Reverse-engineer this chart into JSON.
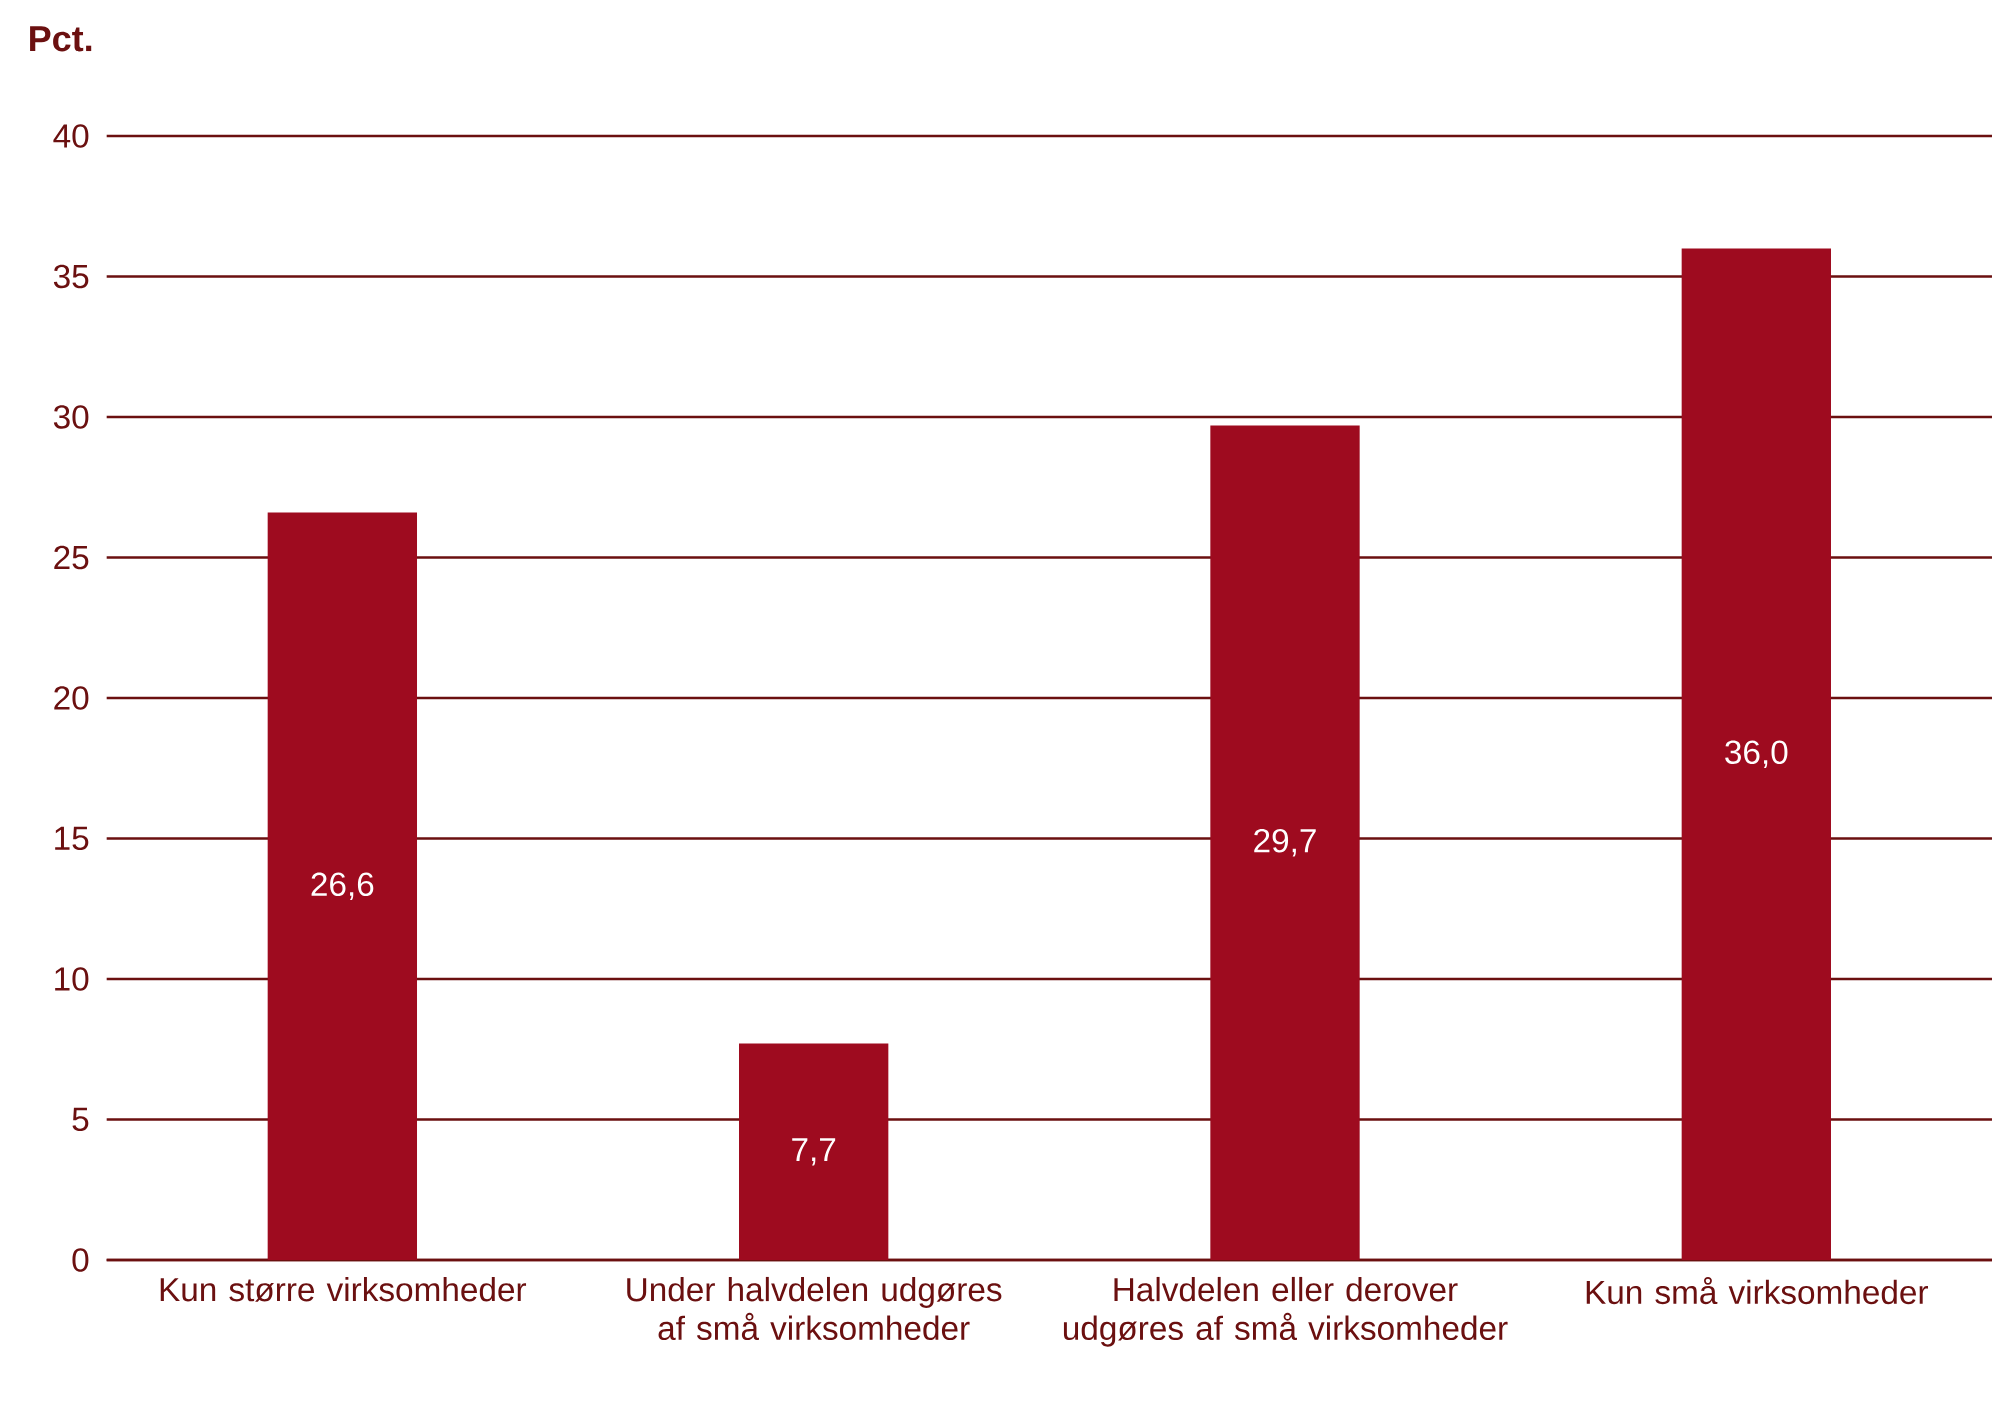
{
  "chart_data": {
    "type": "bar",
    "ylabel": "Pct.",
    "categories": [
      "Kun større virksomheder",
      "Under halvdelen udgøres af små virksomheder",
      "Halvdelen eller derover udgøres af små virksomheder",
      "Kun små virksomheder"
    ],
    "values": [
      26.6,
      7.7,
      29.7,
      36.0
    ],
    "value_labels": [
      "26,6",
      "7,7",
      "29,7",
      "36,0"
    ],
    "color": "#9e0b1f",
    "ylim": [
      0,
      40
    ],
    "yticks": [
      0,
      5,
      10,
      15,
      20,
      25,
      30,
      35,
      40
    ],
    "grid": "y"
  }
}
